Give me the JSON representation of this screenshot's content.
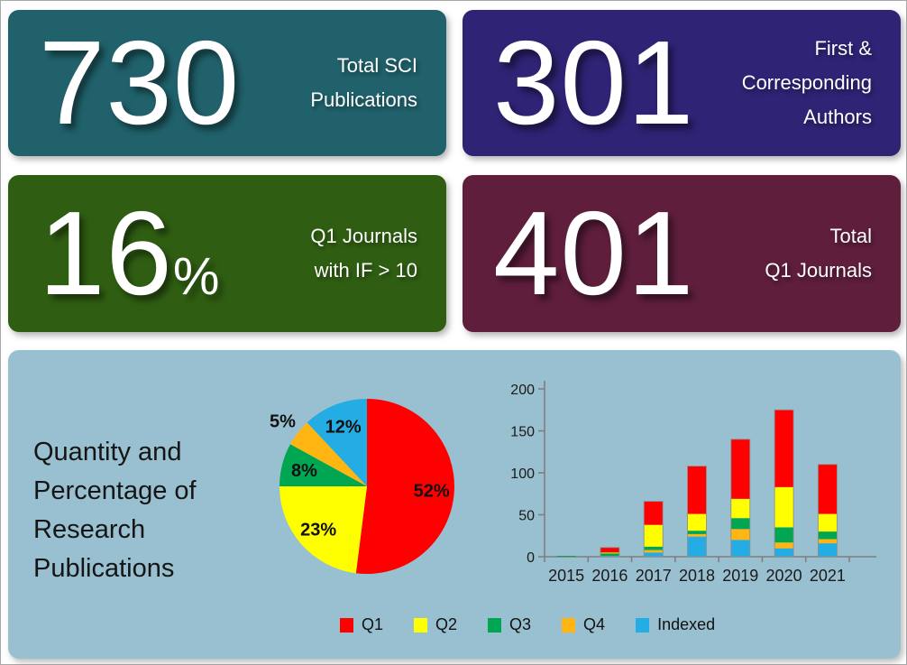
{
  "cards": [
    {
      "value": "730",
      "suffix": "",
      "bg": "#20616B",
      "label_lines": [
        "Total SCI",
        "Publications"
      ]
    },
    {
      "value": "301",
      "suffix": "",
      "bg": "#2E2374",
      "label_lines": [
        "First &",
        "Corresponding",
        "Authors"
      ]
    },
    {
      "value": "16",
      "suffix": "%",
      "bg": "#2F5E12",
      "label_lines": [
        "Q1 Journals",
        "with IF > 10"
      ]
    },
    {
      "value": "401",
      "suffix": "",
      "bg": "#5E1E3C",
      "label_lines": [
        "Total",
        "Q1 Journals"
      ]
    }
  ],
  "panel": {
    "bg": "#99C0D0",
    "title_lines": [
      "Quantity and",
      "Percentage of",
      "Research",
      "Publications"
    ],
    "legend": [
      {
        "label": "Q1",
        "color": "#FE0000"
      },
      {
        "label": "Q2",
        "color": "#FFFF00"
      },
      {
        "label": "Q3",
        "color": "#00A651"
      },
      {
        "label": "Q4",
        "color": "#FFB612"
      },
      {
        "label": "Indexed",
        "color": "#24ACE4"
      }
    ]
  },
  "chart_data": [
    {
      "type": "pie",
      "title": "Percentage of Research Publications",
      "start_angle": "12 o'clock",
      "direction": "clockwise",
      "slices": [
        {
          "label": "Q1",
          "pct": 52,
          "color": "#FE0000",
          "label_text": "52%",
          "label_inside": true
        },
        {
          "label": "Q2",
          "pct": 23,
          "color": "#FFFF00",
          "label_text": "23%",
          "label_inside": true
        },
        {
          "label": "Q3",
          "pct": 8,
          "color": "#00A651",
          "label_text": "8%",
          "label_inside": true
        },
        {
          "label": "Q4",
          "pct": 5,
          "color": "#FFB612",
          "label_text": "5%",
          "label_inside": false
        },
        {
          "label": "Indexed",
          "pct": 12,
          "color": "#24ACE4",
          "label_text": "12%",
          "label_inside": true
        }
      ]
    },
    {
      "type": "bar",
      "stacked": true,
      "title": "Quantity of Research Publications by Year",
      "categories": [
        "2015",
        "2016",
        "2017",
        "2018",
        "2019",
        "2020",
        "2021"
      ],
      "series": [
        {
          "name": "Q1",
          "color": "#FE0000",
          "values": [
            0,
            6,
            28,
            57,
            71,
            92,
            59
          ]
        },
        {
          "name": "Q2",
          "color": "#FFFF00",
          "values": [
            0,
            1,
            26,
            20,
            23,
            48,
            21
          ]
        },
        {
          "name": "Q3",
          "color": "#00A651",
          "values": [
            1,
            3,
            4,
            4,
            13,
            18,
            9
          ]
        },
        {
          "name": "Q4",
          "color": "#FFB612",
          "values": [
            0,
            0,
            3,
            3,
            13,
            7,
            5
          ]
        },
        {
          "name": "Indexed",
          "color": "#24ACE4",
          "values": [
            0,
            1,
            5,
            24,
            20,
            10,
            16
          ]
        }
      ],
      "stack_order_bottom_to_top": [
        "Indexed",
        "Q4",
        "Q3",
        "Q2",
        "Q1"
      ],
      "totals": [
        1,
        11,
        66,
        108,
        140,
        175,
        110
      ],
      "ylim": [
        0,
        200
      ],
      "yticks": [
        0,
        50,
        100,
        150,
        200
      ],
      "grid": false,
      "legend_position": "bottom"
    }
  ]
}
